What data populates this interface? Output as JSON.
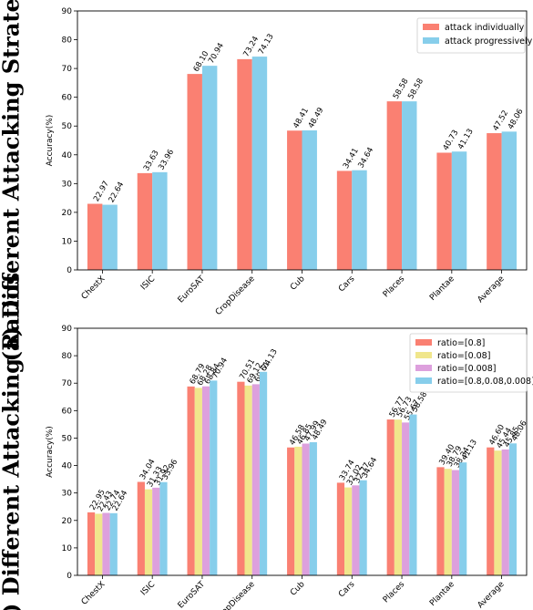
{
  "chart_data": [
    {
      "type": "bar",
      "side_title": "(a) Different Attacking Strategies",
      "ylabel": "Accuracy(%)",
      "ylim": [
        0,
        90
      ],
      "yticks": [
        0,
        10,
        20,
        30,
        40,
        50,
        60,
        70,
        80,
        90
      ],
      "categories": [
        "ChestX",
        "ISIC",
        "EuroSAT",
        "CropDisease",
        "Cub",
        "Cars",
        "Places",
        "Plantae",
        "Average"
      ],
      "legend_position": "top-right",
      "series": [
        {
          "name": "attack individually",
          "color": "#fa8072",
          "values": [
            22.97,
            33.63,
            68.1,
            73.24,
            48.41,
            34.41,
            58.58,
            40.73,
            47.52
          ],
          "labels": [
            "22.97",
            "33.63",
            "68.10",
            "73.24",
            "48.41",
            "34.41",
            "58.58",
            "40.73",
            "47.52"
          ]
        },
        {
          "name": "attack progressively",
          "color": "#87ceeb",
          "values": [
            22.64,
            33.96,
            70.94,
            74.13,
            48.49,
            34.64,
            58.58,
            41.13,
            48.06
          ],
          "labels": [
            "22.64",
            "33.96",
            "70.94",
            "74.13",
            "48.49",
            "34.64",
            "58.58",
            "41.13",
            "48.06"
          ]
        }
      ]
    },
    {
      "type": "bar",
      "side_title": "(b) Different Attacking Ratios",
      "ylabel": "Accuracy(%)",
      "ylim": [
        0,
        90
      ],
      "yticks": [
        0,
        10,
        20,
        30,
        40,
        50,
        60,
        70,
        80,
        90
      ],
      "categories": [
        "ChestX",
        "ISIC",
        "EuroSAT",
        "CropDisease",
        "Cub",
        "Cars",
        "Places",
        "Plantae",
        "Average"
      ],
      "legend_position": "top-right",
      "series": [
        {
          "name": "ratio=[0.8]",
          "color": "#fa8072",
          "values": [
            22.95,
            34.04,
            68.79,
            70.51,
            46.58,
            33.74,
            56.77,
            39.4,
            46.6
          ],
          "labels": [
            "22.95",
            "34.04",
            "68.79",
            "70.51",
            "46.58",
            "33.74",
            "56.77",
            "39.40",
            "46.60"
          ]
        },
        {
          "name": "ratio=[0.08]",
          "color": "#f0e68c",
          "values": [
            22.43,
            31.33,
            68.28,
            69.12,
            46.85,
            32.02,
            56.73,
            38.79,
            45.44
          ],
          "labels": [
            "22.43",
            "31.33",
            "68.28",
            "69.12",
            "46.85",
            "32.02",
            "56.73",
            "38.79",
            "45.44"
          ]
        },
        {
          "name": "ratio=[0.008]",
          "color": "#dda0dd",
          "values": [
            22.74,
            31.92,
            68.84,
            69.61,
            47.99,
            32.77,
            55.67,
            38.34,
            45.85
          ],
          "labels": [
            "22.74",
            "31.92",
            "68.84",
            "69.61",
            "47.99",
            "32.77",
            "55.67",
            "38.34",
            "45.85"
          ]
        },
        {
          "name": "ratio=[0.8,0.08,0.008]",
          "color": "#87ceeb",
          "values": [
            22.64,
            33.96,
            70.94,
            74.13,
            48.49,
            34.64,
            58.58,
            41.13,
            48.06
          ],
          "labels": [
            "22.64",
            "33.96",
            "70.94",
            "74.13",
            "48.49",
            "34.64",
            "58.58",
            "41.13",
            "48.06"
          ]
        }
      ]
    }
  ]
}
